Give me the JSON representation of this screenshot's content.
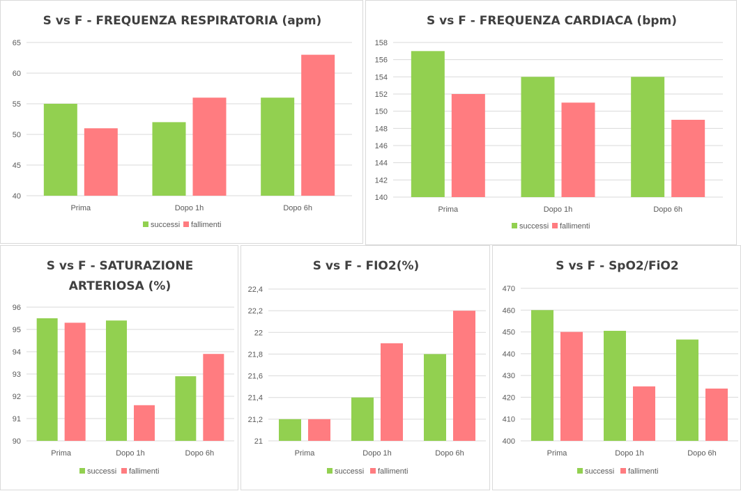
{
  "legend": {
    "successi": "successi",
    "fallimenti": "fallimenti"
  },
  "colors": {
    "successi": "#92d050",
    "fallimenti": "#ff7c80"
  },
  "chart_data": [
    {
      "type": "bar",
      "title_lines": [
        "S vs F - FREQUENZA RESPIRATORIA (apm)"
      ],
      "categories": [
        "Prima",
        "Dopo 1h",
        "Dopo 6h"
      ],
      "series": [
        {
          "name": "successi",
          "values": [
            55,
            52,
            56
          ]
        },
        {
          "name": "fallimenti",
          "values": [
            51,
            56,
            63
          ]
        }
      ],
      "ylim": [
        40,
        65
      ],
      "yticks": [
        "40",
        "45",
        "50",
        "55",
        "60",
        "65"
      ],
      "grid": true,
      "legend": "bottom"
    },
    {
      "type": "bar",
      "title_lines": [
        "S vs F - FREQUENZA CARDIACA (bpm)"
      ],
      "categories": [
        "Prima",
        "Dopo 1h",
        "Dopo 6h"
      ],
      "series": [
        {
          "name": "successi",
          "values": [
            157,
            154,
            154
          ]
        },
        {
          "name": "fallimenti",
          "values": [
            152,
            151,
            149
          ]
        }
      ],
      "ylim": [
        140,
        158
      ],
      "yticks": [
        "140",
        "142",
        "144",
        "146",
        "148",
        "150",
        "152",
        "154",
        "156",
        "158"
      ],
      "grid": true,
      "legend": "bottom"
    },
    {
      "type": "bar",
      "title_lines": [
        "S vs F - SATURAZIONE",
        "ARTERIOSA (%)"
      ],
      "categories": [
        "Prima",
        "Dopo 1h",
        "Dopo 6h"
      ],
      "series": [
        {
          "name": "successi",
          "values": [
            95.5,
            95.4,
            92.9
          ]
        },
        {
          "name": "fallimenti",
          "values": [
            95.3,
            91.6,
            93.9
          ]
        }
      ],
      "ylim": [
        90,
        96
      ],
      "yticks": [
        "90",
        "91",
        "92",
        "93",
        "94",
        "95",
        "96"
      ],
      "grid": true,
      "legend": "bottom"
    },
    {
      "type": "bar",
      "title_lines": [
        "S vs F - FIO2(%)"
      ],
      "categories": [
        "Prima",
        "Dopo 1h",
        "Dopo 6h"
      ],
      "series": [
        {
          "name": "successi",
          "values": [
            21.2,
            21.4,
            21.8
          ]
        },
        {
          "name": "fallimenti",
          "values": [
            21.2,
            21.9,
            22.2
          ]
        }
      ],
      "ylim": [
        21,
        22.4
      ],
      "yticks": [
        "21",
        "21,2",
        "21,4",
        "21,6",
        "21,8",
        "22",
        "22,2",
        "22,4"
      ],
      "grid": true,
      "legend": "bottom"
    },
    {
      "type": "bar",
      "title_lines": [
        "S vs F - SpO2/FiO2"
      ],
      "categories": [
        "Prima",
        "Dopo 1h",
        "Dopo 6h"
      ],
      "series": [
        {
          "name": "successi",
          "values": [
            460,
            450.5,
            446.5
          ]
        },
        {
          "name": "fallimenti",
          "values": [
            450,
            425,
            424
          ]
        }
      ],
      "ylim": [
        400,
        470
      ],
      "yticks": [
        "400",
        "410",
        "420",
        "430",
        "440",
        "450",
        "460",
        "470"
      ],
      "grid": true,
      "legend": "bottom"
    }
  ]
}
